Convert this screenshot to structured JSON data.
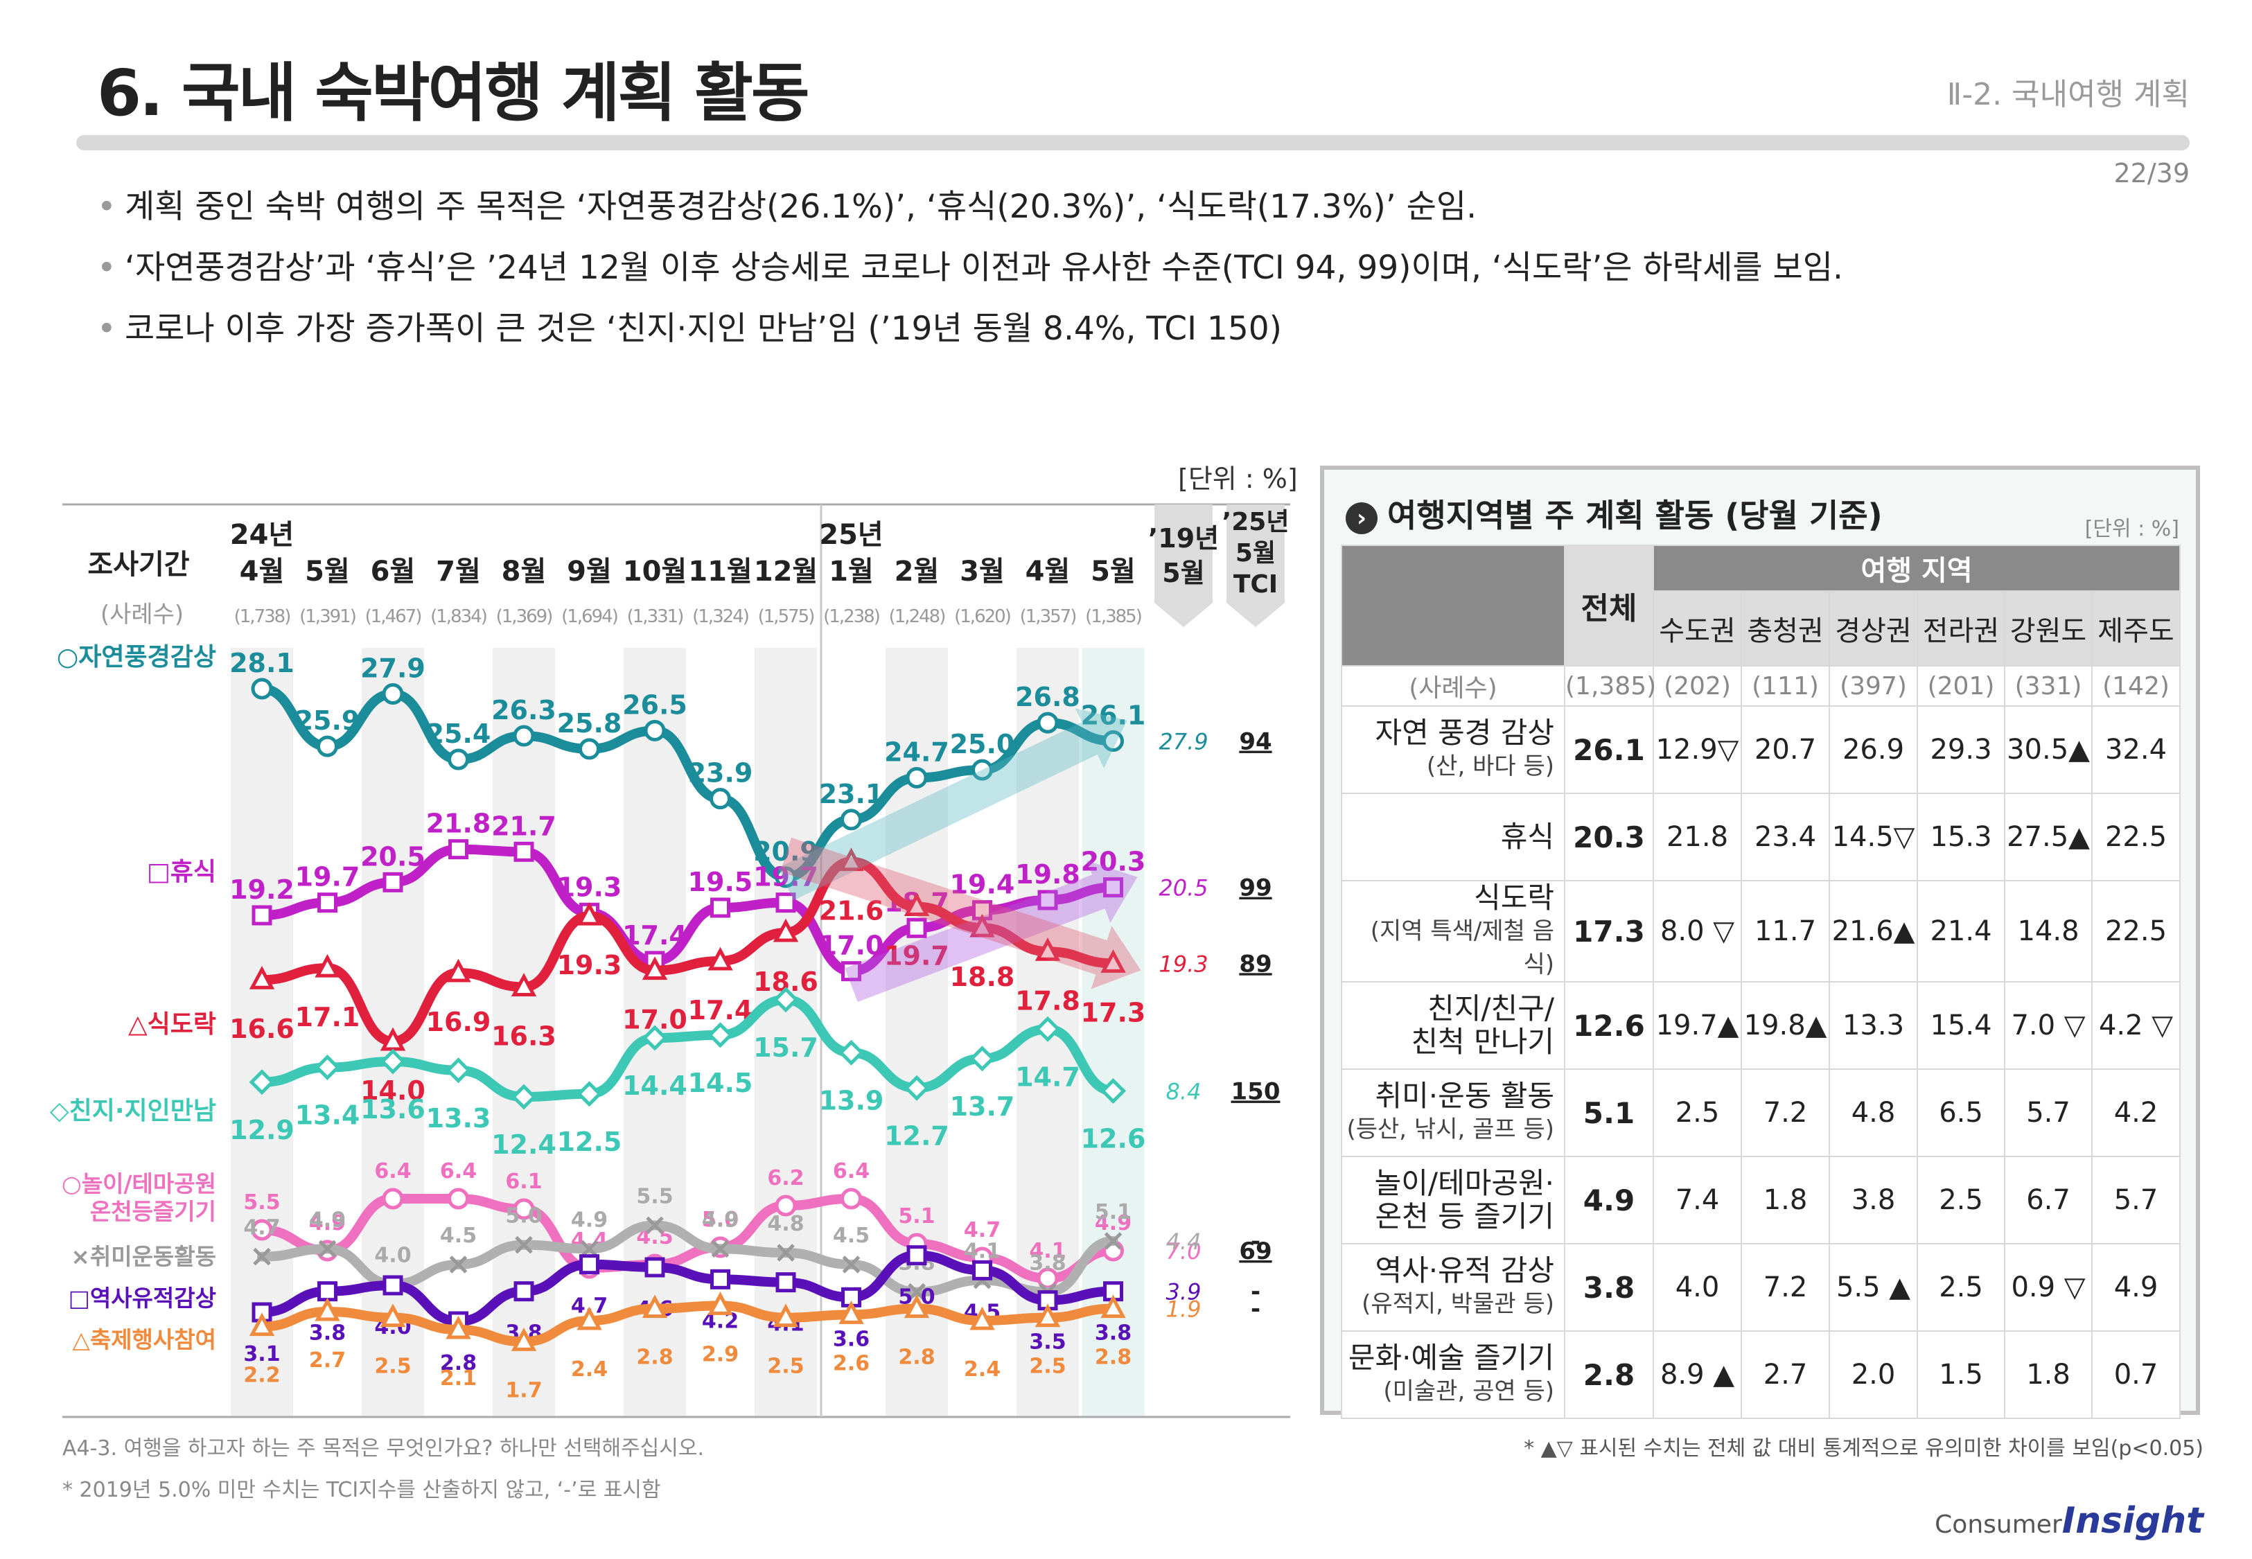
{
  "header": {
    "title": "6. 국내 숙박여행 계획 활동",
    "section": "Ⅱ-2. 국내여행 계획",
    "page": "22/39"
  },
  "bullets": [
    "계획 중인 숙박 여행의 주 목적은 ‘자연풍경감상(26.1%)’, ‘휴식(20.3%)’, ‘식도락(17.3%)’ 순임.",
    "‘자연풍경감상’과 ‘휴식’은 ’24년 12월 이후 상승세로 코로나 이전과 유사한 수준(TCI 94, 99)이며, ‘식도락’은 하락세를 보임.",
    "코로나 이후 가장 증가폭이 큰 것은 ‘친지·지인 만남’임 (’19년 동월 8.4%, TCI 150)"
  ],
  "left_unit": "[단위 : %]",
  "chart_data": {
    "type": "line",
    "period_header": "조사기간",
    "sample_header": "(사례수)",
    "year_labels": [
      {
        "index": 0,
        "text": "24년"
      },
      {
        "index": 8,
        "text": "25년"
      }
    ],
    "x": [
      "4월",
      "5월",
      "6월",
      "7월",
      "8월",
      "9월",
      "10월",
      "11월",
      "12월",
      "1월",
      "2월",
      "3월",
      "4월",
      "5월"
    ],
    "samples": [
      "(1,738)",
      "(1,391)",
      "(1,467)",
      "(1,834)",
      "(1,369)",
      "(1,694)",
      "(1,331)",
      "(1,324)",
      "(1,575)",
      "(1,238)",
      "(1,248)",
      "(1,620)",
      "(1,357)",
      "(1,385)"
    ],
    "compare_header": [
      "’19년",
      "5월"
    ],
    "tci_header": [
      "’25년",
      "5월",
      "TCI"
    ],
    "series": [
      {
        "name": "○자연풍경감상",
        "color": "#1a8c9a",
        "marker": "circle",
        "values": [
          28.1,
          25.9,
          27.9,
          25.4,
          26.3,
          25.8,
          26.5,
          23.9,
          20.9,
          23.1,
          24.7,
          25.0,
          26.8,
          26.1
        ],
        "ref2019": "27.9",
        "tci": "94"
      },
      {
        "name": "□휴식",
        "color": "#c020c8",
        "marker": "square",
        "values": [
          19.2,
          19.7,
          20.5,
          21.8,
          21.7,
          19.3,
          17.4,
          19.5,
          19.7,
          17.0,
          18.7,
          19.4,
          19.8,
          20.3
        ],
        "ref2019": "20.5",
        "tci": "99"
      },
      {
        "name": "△식도락",
        "color": "#e0203c",
        "marker": "triangle",
        "values": [
          16.6,
          17.1,
          14.0,
          16.9,
          16.3,
          19.3,
          17.0,
          17.4,
          18.6,
          21.6,
          19.7,
          18.8,
          17.8,
          17.3
        ],
        "ref2019": "19.3",
        "tci": "89"
      },
      {
        "name": "◇친지·지인만남",
        "color": "#3cc8b4",
        "marker": "diamond",
        "values": [
          12.9,
          13.4,
          13.6,
          13.3,
          12.4,
          12.5,
          14.4,
          14.5,
          15.7,
          13.9,
          12.7,
          13.7,
          14.7,
          12.6
        ],
        "ref2019": "8.4",
        "tci": "150"
      },
      {
        "name": "○놀이/테마공원 온천등즐기기",
        "color": "#f070c0",
        "marker": "circle",
        "values": [
          5.5,
          4.9,
          6.4,
          6.4,
          6.1,
          4.4,
          4.5,
          5.0,
          6.2,
          6.4,
          5.1,
          4.7,
          4.1,
          4.9
        ],
        "ref2019": "7.0",
        "tci": "69"
      },
      {
        "name": "×취미운동활동",
        "color": "#b0b0b0",
        "marker": "cross",
        "values": [
          4.7,
          4.9,
          4.0,
          4.5,
          5.0,
          4.9,
          5.5,
          4.9,
          4.8,
          4.5,
          3.8,
          4.1,
          3.8,
          5.1
        ],
        "ref2019": "4.4",
        "tci": "-"
      },
      {
        "name": "□역사유적감상",
        "color": "#5a10b8",
        "marker": "square",
        "values": [
          3.1,
          3.8,
          4.0,
          2.8,
          3.8,
          4.7,
          4.6,
          4.2,
          4.1,
          3.6,
          5.0,
          4.5,
          3.5,
          3.8
        ],
        "ref2019": "3.9",
        "tci": "-"
      },
      {
        "name": "△축제행사참여",
        "color": "#f08a3c",
        "marker": "triangle",
        "values": [
          2.2,
          2.7,
          2.5,
          2.1,
          1.7,
          2.4,
          2.8,
          2.9,
          2.5,
          2.6,
          2.8,
          2.4,
          2.5,
          2.8
        ],
        "ref2019": "1.9",
        "tci": "-"
      }
    ]
  },
  "right_panel": {
    "title": "여행지역별 주 계획 활동 (당월 기준)",
    "unit": "[단위 : %]",
    "total_header": "전체",
    "region_header": "여행 지역",
    "regions": [
      "수도권",
      "충청권",
      "경상권",
      "전라권",
      "강원도",
      "제주도"
    ],
    "sample_label": "(사례수)",
    "samples": [
      "(1,385)",
      "(202)",
      "(111)",
      "(397)",
      "(201)",
      "(331)",
      "(142)"
    ],
    "rows": [
      {
        "label": "자연 풍경 감상",
        "sub": "(산, 바다 등)",
        "values": [
          "26.1",
          "12.9▽",
          "20.7",
          "26.9",
          "29.3",
          "30.5▲",
          "32.4"
        ]
      },
      {
        "label": "휴식",
        "sub": "",
        "values": [
          "20.3",
          "21.8",
          "23.4",
          "14.5▽",
          "15.3",
          "27.5▲",
          "22.5"
        ]
      },
      {
        "label": "식도락",
        "sub": "(지역 특색/제철 음식)",
        "values": [
          "17.3",
          "8.0 ▽",
          "11.7",
          "21.6▲",
          "21.4",
          "14.8",
          "22.5"
        ]
      },
      {
        "label": "친지/친구/",
        "sub": "친척 만나기",
        "values": [
          "12.6",
          "19.7▲",
          "19.8▲",
          "13.3",
          "15.4",
          "7.0 ▽",
          "4.2 ▽"
        ]
      },
      {
        "label": "취미·운동 활동",
        "sub": "(등산, 낚시, 골프 등)",
        "values": [
          "5.1",
          "2.5",
          "7.2",
          "4.8",
          "6.5",
          "5.7",
          "4.2"
        ]
      },
      {
        "label": "놀이/테마공원·",
        "sub": "온천 등 즐기기",
        "values": [
          "4.9",
          "7.4",
          "1.8",
          "3.8",
          "2.5",
          "6.7",
          "5.7"
        ]
      },
      {
        "label": "역사·유적 감상",
        "sub": "(유적지, 박물관 등)",
        "values": [
          "3.8",
          "4.0",
          "7.2",
          "5.5 ▲",
          "2.5",
          "0.9 ▽",
          "4.9"
        ]
      },
      {
        "label": "문화·예술 즐기기",
        "sub": "(미술관, 공연 등)",
        "values": [
          "2.8",
          "8.9 ▲",
          "2.7",
          "2.0",
          "1.5",
          "1.8",
          "0.7"
        ]
      }
    ]
  },
  "footnotes": {
    "question": "A4-3. 여행을 하고자 하는 주 목적은 무엇인가요? 하나만 선택해주십시오.",
    "tci_note": "* 2019년 5.0% 미만 수치는 TCI지수를 산출하지 않고, ‘-’로 표시함",
    "sig_note": "* ▲▽ 표시된 수치는 전체 값 대비 통계적으로 유의미한 차이를 보임(p<0.05)"
  },
  "logo": {
    "small": "Consumer",
    "big": "Insight"
  }
}
